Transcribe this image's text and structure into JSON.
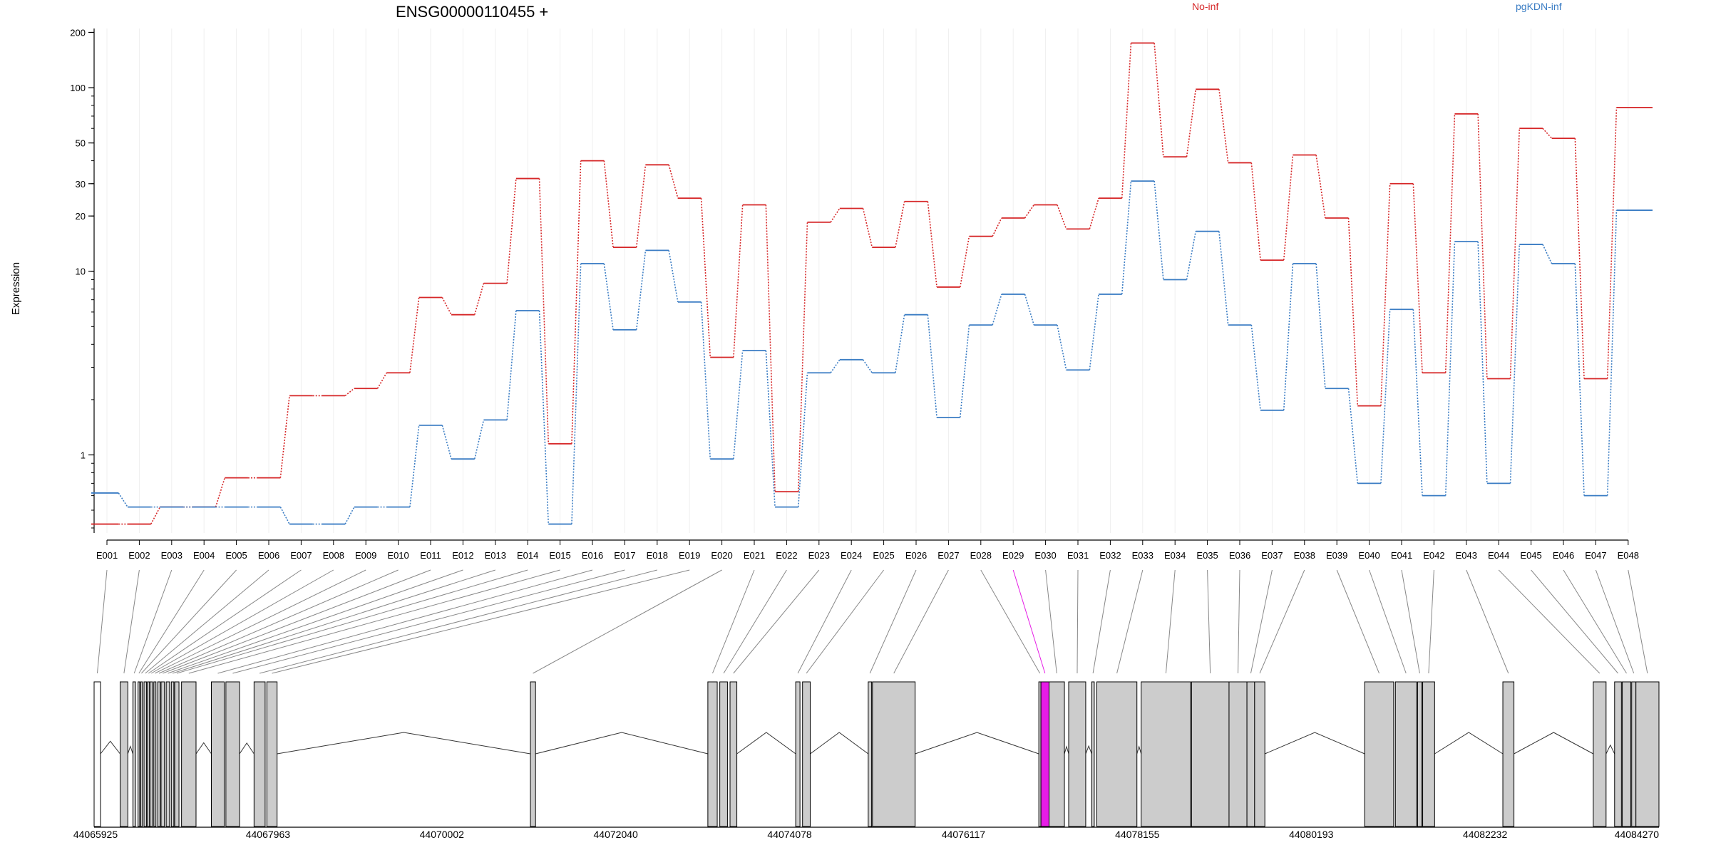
{
  "chart_data": {
    "type": "line",
    "title": "ENSG00000110455 +",
    "ylabel": "Expression",
    "yscale": "log",
    "ylim": [
      0.4,
      210
    ],
    "yticks": [
      1,
      10,
      20,
      30,
      50,
      100,
      200
    ],
    "categories": [
      "E001",
      "E002",
      "E003",
      "E004",
      "E005",
      "E006",
      "E007",
      "E008",
      "E009",
      "E010",
      "E011",
      "E012",
      "E013",
      "E014",
      "E015",
      "E016",
      "E017",
      "E018",
      "E019",
      "E020",
      "E021",
      "E022",
      "E023",
      "E024",
      "E025",
      "E026",
      "E027",
      "E028",
      "E029",
      "E030",
      "E031",
      "E032",
      "E033",
      "E034",
      "E035",
      "E036",
      "E037",
      "E038",
      "E039",
      "E040",
      "E041",
      "E042",
      "E043",
      "E044",
      "E045",
      "E046",
      "E047",
      "E048"
    ],
    "series": [
      {
        "name": "No-inf",
        "color": "#d62728",
        "values": [
          0.42,
          0.42,
          0.52,
          0.52,
          0.75,
          0.75,
          2.1,
          2.1,
          2.3,
          2.8,
          7.2,
          5.8,
          8.6,
          32,
          1.15,
          40,
          13.5,
          38,
          25,
          3.4,
          23,
          0.63,
          18.5,
          22,
          13.5,
          24,
          8.2,
          15.5,
          19.5,
          23,
          17,
          25,
          175,
          42,
          98,
          39,
          11.5,
          43,
          19.5,
          1.85,
          30,
          2.8,
          72,
          2.6,
          60,
          53,
          2.6,
          78
        ]
      },
      {
        "name": "pgKDN-inf",
        "color": "#3b7dc4",
        "values": [
          0.62,
          0.52,
          0.52,
          0.52,
          0.52,
          0.52,
          0.42,
          0.42,
          0.52,
          0.52,
          1.45,
          0.95,
          1.55,
          6.1,
          0.42,
          11,
          4.8,
          13,
          6.8,
          0.95,
          3.7,
          0.52,
          2.8,
          3.3,
          2.8,
          5.8,
          1.6,
          5.1,
          7.5,
          5.1,
          2.9,
          7.5,
          31,
          9,
          16.5,
          5.1,
          1.75,
          11,
          2.3,
          0.7,
          6.2,
          0.6,
          14.5,
          0.7,
          14,
          11,
          0.6,
          21.5
        ]
      }
    ],
    "legend_placement": "top",
    "genomic_axis": {
      "range": [
        44065925,
        44084270
      ],
      "tick_labels": [
        "44065925",
        "44067963",
        "44070002",
        "44072040",
        "44074078",
        "44076117",
        "44078155",
        "44080193",
        "44082232",
        "44084270"
      ]
    },
    "exon_starts": [
      44065925,
      44066230,
      44066380,
      44066440,
      44066470,
      44066510,
      44066550,
      44066580,
      44066625,
      44066670,
      44066710,
      44066770,
      44066830,
      44066870,
      44066950,
      44067300,
      44067470,
      44067800,
      44067950,
      44071040,
      44073120,
      44073260,
      44073380,
      44074150,
      44074230,
      44075000,
      44075050,
      44077000,
      44077025,
      44077120,
      44077350,
      44077620,
      44077680,
      44078200,
      44078790,
      44079230,
      44079440,
      44079530,
      44080820,
      44081180,
      44081440,
      44081500,
      44082440,
      44083500,
      44083750,
      44083840,
      44083950,
      44084000
    ],
    "exon_ends": [
      44066000,
      44066320,
      44066410,
      44066460,
      44066490,
      44066540,
      44066575,
      44066610,
      44066650,
      44066700,
      44066750,
      44066810,
      44066860,
      44066920,
      44067120,
      44067450,
      44067630,
      44067930,
      44068070,
      44071100,
      44073230,
      44073350,
      44073460,
      44074200,
      44074320,
      44075040,
      44075550,
      44077025,
      44077120,
      44077300,
      44077550,
      44077650,
      44078150,
      44078780,
      44079230,
      44079440,
      44079530,
      44079650,
      44081160,
      44081430,
      44081490,
      44081640,
      44082570,
      44083650,
      44083830,
      44083940,
      44084000,
      44084270
    ],
    "highlight": {
      "category": "E029",
      "color": "#e61ce6"
    }
  }
}
